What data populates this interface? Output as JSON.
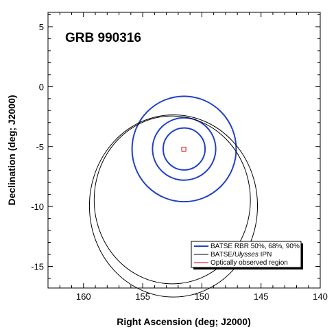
{
  "chart_data": {
    "type": "scatter",
    "title": "GRB 990316",
    "xlabel": "Right Ascension (deg; J2000)",
    "ylabel": "Declination (deg; J2000)",
    "xlim": [
      163,
      140
    ],
    "ylim": [
      -16.8,
      6.2
    ],
    "x_ticks": [
      160,
      155,
      150,
      145,
      140
    ],
    "y_ticks": [
      5,
      0,
      -5,
      -10,
      -15
    ],
    "x_minor_step": 1,
    "y_minor_step": 1,
    "grid": false,
    "legend_position": "bottom-right",
    "colors": {
      "batse_rbr": "#2040c8",
      "ipn": "#000000",
      "optical": "#cc0000"
    },
    "series": [
      {
        "name": "BATSE RBR 50%, 68%, 90%",
        "shape": "ellipses",
        "color": "#2040c8",
        "center": [
          151.5,
          -5.2
        ],
        "ellipses": [
          {
            "rx": 1.77,
            "ry": 1.75
          },
          {
            "rx": 2.67,
            "ry": 2.6
          },
          {
            "rx": 4.4,
            "ry": 4.4
          }
        ]
      },
      {
        "name_parts": [
          "BATSE/",
          "Ulysses",
          " IPN"
        ],
        "shape": "ellipses",
        "color": "#000000",
        "ellipses": [
          {
            "cx": 152.4,
            "cy": -9.95,
            "rx": 7.1,
            "ry": 7.6
          },
          {
            "cx": 152.5,
            "cy": -9.45,
            "rx": 6.6,
            "ry": 7.0
          }
        ]
      },
      {
        "name": "Optically observed region",
        "shape": "rect",
        "color": "#cc0000",
        "x_range": [
          151.35,
          151.7
        ],
        "y_range": [
          -5.38,
          -5.05
        ]
      }
    ]
  }
}
